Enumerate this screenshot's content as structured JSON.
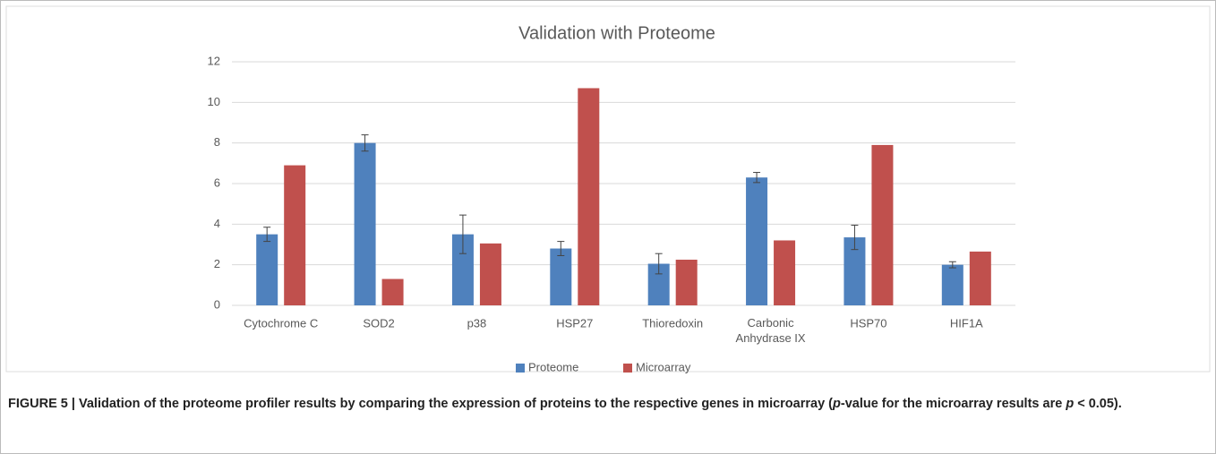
{
  "chart_data": {
    "type": "bar",
    "title": "Validation with Proteome",
    "categories": [
      "Cytochrome C",
      "SOD2",
      "p38",
      "HSP27",
      "Thioredoxin",
      "Carbonic Anhydrase IX",
      "HSP70",
      "HIF1A"
    ],
    "series": [
      {
        "name": "Proteome",
        "color": "#4f81bd",
        "values": [
          3.5,
          8.0,
          3.5,
          2.8,
          2.05,
          6.3,
          3.35,
          2.0
        ],
        "errors": [
          0.35,
          0.4,
          0.95,
          0.35,
          0.5,
          0.25,
          0.6,
          0.15
        ]
      },
      {
        "name": "Microarray",
        "color": "#c0504d",
        "values": [
          6.9,
          1.3,
          3.05,
          10.7,
          2.25,
          3.2,
          7.9,
          2.65
        ]
      }
    ],
    "ylim": [
      0,
      12
    ],
    "yticks": [
      0,
      2,
      4,
      6,
      8,
      10,
      12
    ],
    "grid": true,
    "legend": "bottom"
  },
  "caption": [
    "FIGURE 5 | Validation of the proteome profiler results by comparing the expression of proteins to the respective genes in microarray (",
    "p",
    "-value for the microarray results are ",
    "p",
    " < 0.05)."
  ]
}
